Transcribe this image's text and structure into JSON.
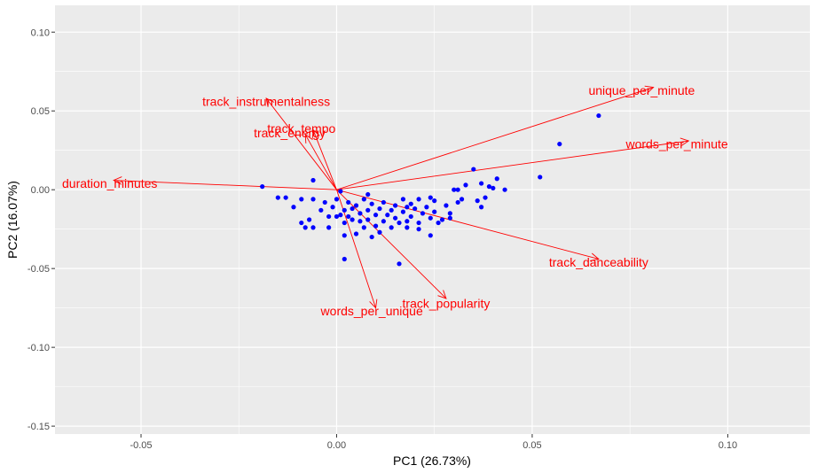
{
  "chart_data": {
    "type": "scatter",
    "subtype": "pca-biplot",
    "title": "",
    "xlabel": "PC1 (26.73%)",
    "ylabel": "PC2 (16.07%)",
    "xlim": [
      -0.072,
      0.121
    ],
    "ylim": [
      -0.155,
      0.117
    ],
    "x_ticks": [
      -0.05,
      0.0,
      0.05,
      0.1
    ],
    "x_tick_labels": [
      "-0.05",
      "0.00",
      "0.05",
      "0.10"
    ],
    "y_ticks": [
      -0.15,
      -0.1,
      -0.05,
      0.0,
      0.05,
      0.1
    ],
    "y_tick_labels": [
      "-0.15",
      "-0.10",
      "-0.05",
      "0.00",
      "0.05",
      "0.10"
    ],
    "grid": true,
    "colors": {
      "panel": "#ebebeb",
      "grid_major": "#ffffff",
      "points": "#0000ff",
      "loadings": "#ff0000"
    },
    "points": [
      {
        "x": 0.067,
        "y": 0.047
      },
      {
        "x": 0.057,
        "y": 0.029
      },
      {
        "x": 0.052,
        "y": 0.008
      },
      {
        "x": 0.043,
        "y": 0.0
      },
      {
        "x": 0.041,
        "y": 0.007
      },
      {
        "x": 0.04,
        "y": 0.001
      },
      {
        "x": 0.039,
        "y": 0.002
      },
      {
        "x": 0.038,
        "y": -0.005
      },
      {
        "x": 0.037,
        "y": 0.004
      },
      {
        "x": 0.037,
        "y": -0.011
      },
      {
        "x": 0.036,
        "y": -0.007
      },
      {
        "x": 0.035,
        "y": 0.013
      },
      {
        "x": 0.033,
        "y": 0.003
      },
      {
        "x": 0.032,
        "y": -0.006
      },
      {
        "x": 0.031,
        "y": 0.0
      },
      {
        "x": 0.031,
        "y": -0.008
      },
      {
        "x": 0.03,
        "y": 0.0
      },
      {
        "x": 0.029,
        "y": -0.015
      },
      {
        "x": 0.029,
        "y": -0.018
      },
      {
        "x": 0.028,
        "y": -0.01
      },
      {
        "x": 0.027,
        "y": -0.019
      },
      {
        "x": 0.026,
        "y": -0.021
      },
      {
        "x": 0.025,
        "y": -0.007
      },
      {
        "x": 0.025,
        "y": -0.014
      },
      {
        "x": 0.024,
        "y": -0.005
      },
      {
        "x": 0.024,
        "y": -0.018
      },
      {
        "x": 0.024,
        "y": -0.029
      },
      {
        "x": 0.023,
        "y": -0.011
      },
      {
        "x": 0.022,
        "y": -0.015
      },
      {
        "x": 0.021,
        "y": -0.006
      },
      {
        "x": 0.021,
        "y": -0.021
      },
      {
        "x": 0.021,
        "y": -0.025
      },
      {
        "x": 0.02,
        "y": -0.012
      },
      {
        "x": 0.019,
        "y": -0.009
      },
      {
        "x": 0.019,
        "y": -0.017
      },
      {
        "x": 0.018,
        "y": -0.011
      },
      {
        "x": 0.018,
        "y": -0.02
      },
      {
        "x": 0.018,
        "y": -0.024
      },
      {
        "x": 0.017,
        "y": -0.006
      },
      {
        "x": 0.017,
        "y": -0.014
      },
      {
        "x": 0.016,
        "y": -0.021
      },
      {
        "x": 0.016,
        "y": -0.047
      },
      {
        "x": 0.015,
        "y": -0.01
      },
      {
        "x": 0.015,
        "y": -0.018
      },
      {
        "x": 0.014,
        "y": -0.013
      },
      {
        "x": 0.014,
        "y": -0.024
      },
      {
        "x": 0.013,
        "y": -0.016
      },
      {
        "x": 0.012,
        "y": -0.008
      },
      {
        "x": 0.012,
        "y": -0.02
      },
      {
        "x": 0.011,
        "y": -0.012
      },
      {
        "x": 0.011,
        "y": -0.027
      },
      {
        "x": 0.01,
        "y": -0.016
      },
      {
        "x": 0.01,
        "y": -0.023
      },
      {
        "x": 0.009,
        "y": -0.009
      },
      {
        "x": 0.009,
        "y": -0.03
      },
      {
        "x": 0.008,
        "y": -0.003
      },
      {
        "x": 0.008,
        "y": -0.013
      },
      {
        "x": 0.008,
        "y": -0.019
      },
      {
        "x": 0.007,
        "y": -0.006
      },
      {
        "x": 0.007,
        "y": -0.024
      },
      {
        "x": 0.006,
        "y": -0.015
      },
      {
        "x": 0.006,
        "y": -0.02
      },
      {
        "x": 0.005,
        "y": -0.01
      },
      {
        "x": 0.005,
        "y": -0.028
      },
      {
        "x": 0.004,
        "y": -0.012
      },
      {
        "x": 0.004,
        "y": -0.019
      },
      {
        "x": 0.003,
        "y": -0.008
      },
      {
        "x": 0.003,
        "y": -0.017
      },
      {
        "x": 0.002,
        "y": -0.013
      },
      {
        "x": 0.002,
        "y": -0.021
      },
      {
        "x": 0.002,
        "y": -0.029
      },
      {
        "x": 0.002,
        "y": -0.044
      },
      {
        "x": 0.001,
        "y": -0.001
      },
      {
        "x": 0.001,
        "y": -0.016
      },
      {
        "x": 0.0,
        "y": -0.006
      },
      {
        "x": 0.0,
        "y": -0.017
      },
      {
        "x": -0.001,
        "y": -0.011
      },
      {
        "x": -0.002,
        "y": -0.017
      },
      {
        "x": -0.002,
        "y": -0.024
      },
      {
        "x": -0.003,
        "y": -0.008
      },
      {
        "x": -0.004,
        "y": -0.013
      },
      {
        "x": -0.006,
        "y": -0.024
      },
      {
        "x": -0.006,
        "y": -0.006
      },
      {
        "x": -0.007,
        "y": -0.019
      },
      {
        "x": -0.008,
        "y": -0.024
      },
      {
        "x": -0.009,
        "y": -0.021
      },
      {
        "x": -0.009,
        "y": -0.006
      },
      {
        "x": -0.011,
        "y": -0.011
      },
      {
        "x": -0.013,
        "y": -0.005
      },
      {
        "x": -0.015,
        "y": -0.005
      },
      {
        "x": -0.019,
        "y": 0.002
      },
      {
        "x": -0.006,
        "y": 0.006
      }
    ],
    "loadings": [
      {
        "name": "unique_per_minute",
        "x": 0.081,
        "y": 0.065,
        "label_x": 0.078,
        "label_y": 0.063,
        "anchor": "middle"
      },
      {
        "name": "words_per_minute",
        "x": 0.09,
        "y": 0.031,
        "label_x": 0.087,
        "label_y": 0.029,
        "anchor": "middle"
      },
      {
        "name": "track_instrumentalness",
        "x": -0.018,
        "y": 0.058,
        "label_x": -0.018,
        "label_y": 0.056,
        "anchor": "middle"
      },
      {
        "name": "track_tempo",
        "x": -0.006,
        "y": 0.038,
        "label_x": -0.009,
        "label_y": 0.039,
        "anchor": "middle"
      },
      {
        "name": "track_energy",
        "x": -0.008,
        "y": 0.035,
        "label_x": -0.012,
        "label_y": 0.036,
        "anchor": "middle"
      },
      {
        "name": "duration_minutes",
        "x": -0.057,
        "y": 0.006,
        "label_x": -0.058,
        "label_y": 0.004,
        "anchor": "middle"
      },
      {
        "name": "track_danceability",
        "x": 0.067,
        "y": -0.044,
        "label_x": 0.067,
        "label_y": -0.046,
        "anchor": "middle"
      },
      {
        "name": "track_popularity",
        "x": 0.028,
        "y": -0.069,
        "label_x": 0.028,
        "label_y": -0.072,
        "anchor": "middle"
      },
      {
        "name": "words_per_unique",
        "x": 0.01,
        "y": -0.075,
        "label_x": 0.009,
        "label_y": -0.077,
        "anchor": "middle"
      }
    ]
  }
}
